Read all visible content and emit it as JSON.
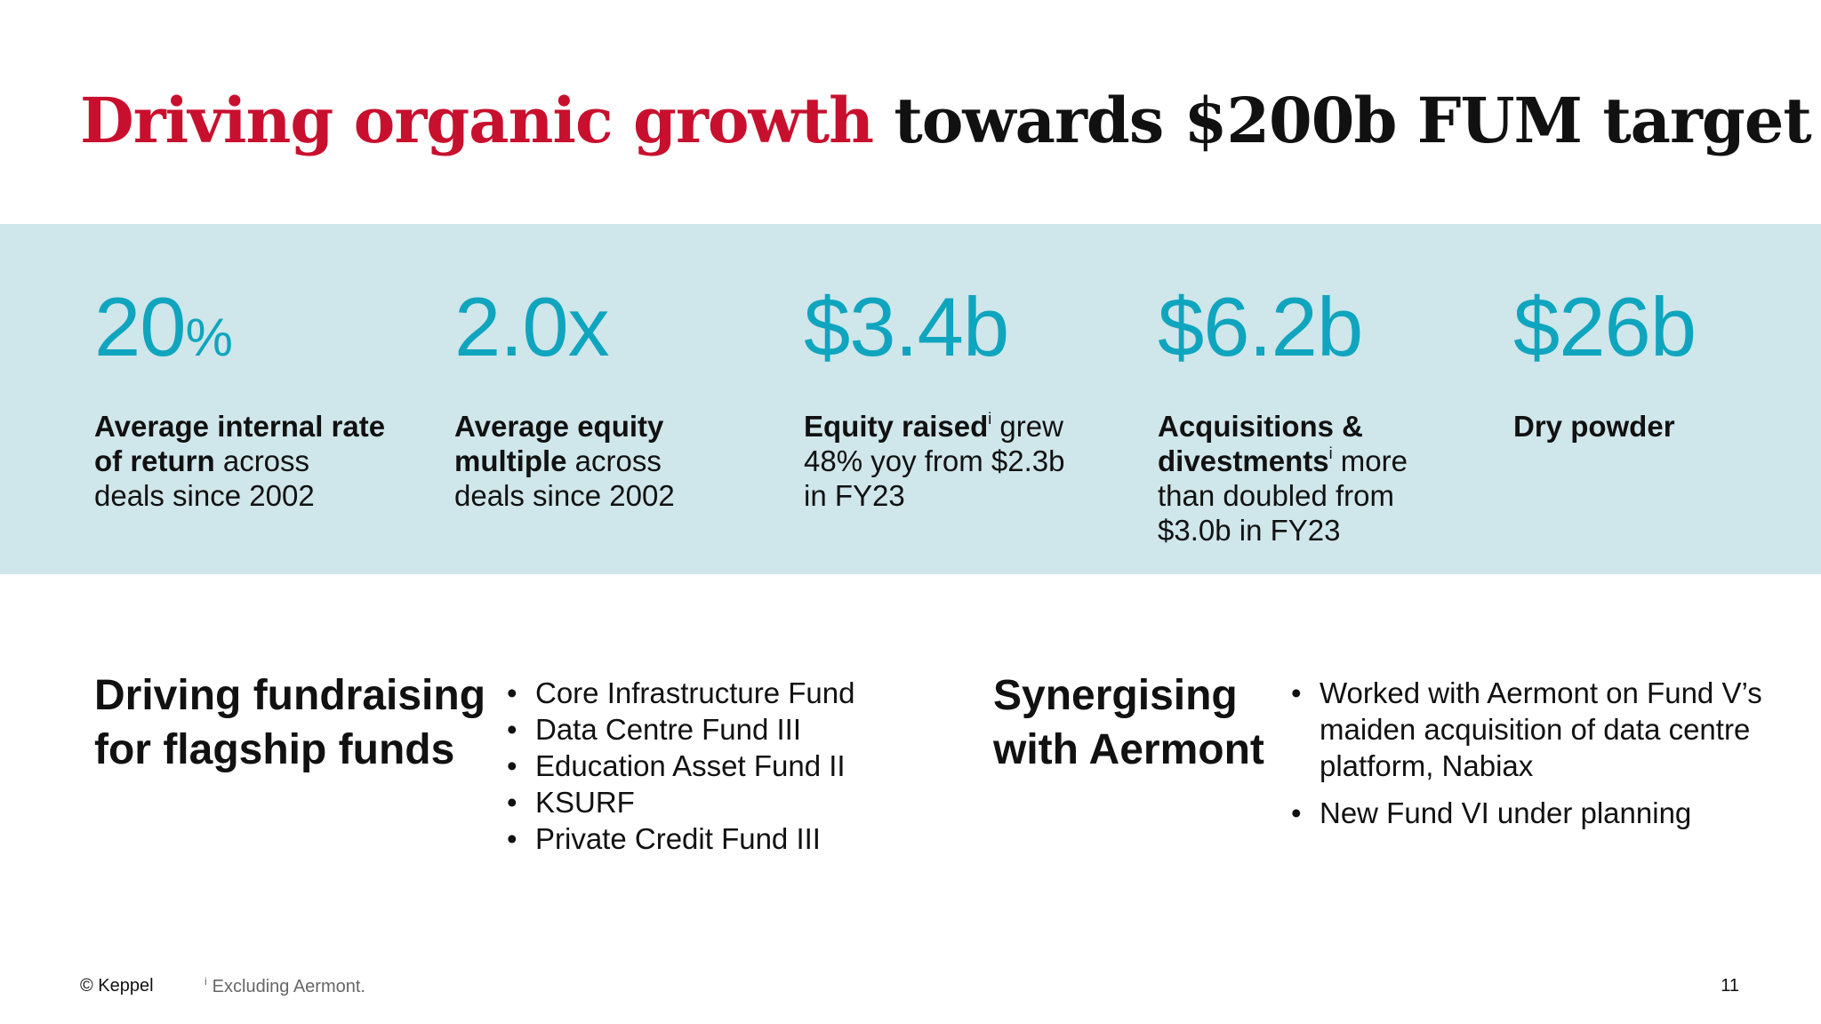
{
  "title": {
    "accent": "Driving organic growth",
    "rest": " towards $200b FUM target"
  },
  "stats": [
    {
      "value": "20",
      "value_suffix": "%",
      "bold": "Average internal rate of return",
      "rest": " across deals since 2002"
    },
    {
      "value": "2.0x",
      "bold": "Average equity multiple",
      "rest": " across deals since 2002"
    },
    {
      "value": "$3.4b",
      "bold": "Equity raised",
      "sup": "i",
      "rest": " grew 48% yoy from $2.3b in FY23"
    },
    {
      "value": "$6.2b",
      "bold": "Acquisitions & divestments",
      "sup": "i",
      "rest": " more than doubled from $3.0b in FY23"
    },
    {
      "value": "$26b",
      "bold": "Dry powder"
    }
  ],
  "fundraising": {
    "title_line1": "Driving fundraising",
    "title_line2": "for flagship funds",
    "items": [
      "Core Infrastructure Fund",
      "Data Centre Fund III",
      "Education Asset Fund II",
      "KSURF",
      "Private Credit Fund III"
    ]
  },
  "aermont": {
    "title_line1": "Synergising",
    "title_line2": "with Aermont",
    "items": [
      "Worked with Aermont on Fund V’s maiden acquisition of data centre platform, Nabiax",
      "New Fund VI under planning"
    ]
  },
  "footer": {
    "copyright": "© Keppel",
    "footnote_mark": "i",
    "footnote": "Excluding Aermont.",
    "page": "11"
  },
  "colors": {
    "title_accent": "#c8102e",
    "stat_value": "#10a5be",
    "band": "#cfe6ea"
  }
}
